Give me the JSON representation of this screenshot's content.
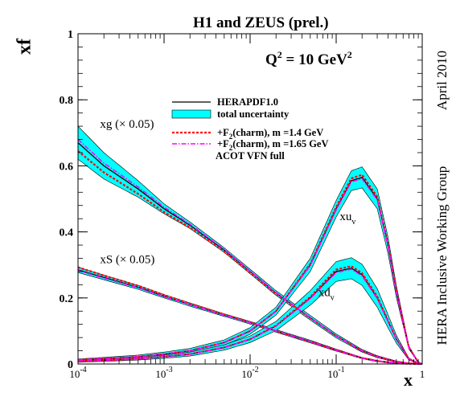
{
  "chart_data": {
    "type": "line",
    "title": "H1 and ZEUS (prel.)",
    "xlabel": "x",
    "ylabel": "xf",
    "x_scale": "log",
    "xlim": [
      0.0001,
      1
    ],
    "ylim": [
      0,
      1
    ],
    "x_ticks": [
      {
        "value": 0.0001,
        "base": "10",
        "exp": "-4"
      },
      {
        "value": 0.001,
        "base": "10",
        "exp": "-3"
      },
      {
        "value": 0.01,
        "base": "10",
        "exp": "-2"
      },
      {
        "value": 0.1,
        "base": "10",
        "exp": "-1"
      },
      {
        "value": 1,
        "base": "1",
        "exp": ""
      }
    ],
    "y_ticks": [
      {
        "value": 0,
        "label": "0"
      },
      {
        "value": 0.2,
        "label": "0.2"
      },
      {
        "value": 0.4,
        "label": "0.4"
      },
      {
        "value": 0.6,
        "label": "0.6"
      },
      {
        "value": 0.8,
        "label": "0.8"
      },
      {
        "value": 1,
        "label": "1"
      }
    ],
    "annotation_q2": {
      "prefix": "Q",
      "sup": "2",
      "text": " = 10 GeV",
      "sup2": "2"
    },
    "side_labels": {
      "date": "April 2010",
      "group": "HERA Inclusive Working Group"
    },
    "curve_labels": [
      {
        "text": "xg (× 0.05)",
        "sub": "",
        "x": 0.00018,
        "y": 0.715
      },
      {
        "text": "xS (× 0.05)",
        "sub": "",
        "x": 0.00018,
        "y": 0.305
      },
      {
        "text": "xu",
        "sub": "v",
        "x": 0.11,
        "y": 0.435
      },
      {
        "text": "xd",
        "sub": "v",
        "x": 0.062,
        "y": 0.205
      }
    ],
    "legend": {
      "placement": "top-right",
      "entries": [
        {
          "text": "HERAPDF1.0",
          "sub": "",
          "text2": "",
          "style": "line",
          "color": "#000000"
        },
        {
          "text": "total uncertainty",
          "sub": "",
          "text2": "",
          "style": "band",
          "color": "#00ffff"
        },
        {
          "text": "+F",
          "sub": "2",
          "text2": "(charm), m =1.4 GeV",
          "style": "dashed",
          "color": "#ff0000"
        },
        {
          "text": "+F",
          "sub": "2",
          "text2": "(charm), m =1.65 GeV",
          "style": "dashdot",
          "color": "#ff00ff"
        },
        {
          "text": "ACOT VFN full",
          "sub": "",
          "text2": "",
          "style": "none",
          "color": "#000000"
        }
      ]
    },
    "colors": {
      "band": "#00ffff",
      "central": "#000000",
      "charm14": "#ff0000",
      "charm165": "#ff00ff"
    },
    "series": [
      {
        "name": "xg (× 0.05)",
        "x": [
          0.0001,
          0.0002,
          0.0005,
          0.001,
          0.002,
          0.005,
          0.01,
          0.02,
          0.05,
          0.1,
          0.2,
          0.3,
          0.5,
          0.7,
          1.0
        ],
        "y": [
          0.67,
          0.6,
          0.53,
          0.47,
          0.42,
          0.345,
          0.28,
          0.215,
          0.14,
          0.085,
          0.04,
          0.022,
          0.007,
          0.002,
          0.0
        ],
        "band": [
          0.05,
          0.04,
          0.025,
          0.015,
          0.01,
          0.007,
          0.007,
          0.007,
          0.007,
          0.006,
          0.004,
          0.003,
          0.002,
          0.001,
          0.0
        ],
        "charm14_shift": [
          -0.025,
          -0.02,
          -0.015,
          -0.01,
          -0.007,
          -0.005,
          -0.003,
          -0.002,
          -0.001,
          0,
          0,
          0,
          0,
          0,
          0
        ],
        "charm165_shift": [
          0.01,
          0.008,
          0.006,
          0.005,
          0.003,
          0.002,
          0.001,
          0.001,
          0,
          0,
          0,
          0,
          0,
          0,
          0
        ]
      },
      {
        "name": "xS (× 0.05)",
        "x": [
          0.0001,
          0.0002,
          0.0005,
          0.001,
          0.002,
          0.005,
          0.01,
          0.02,
          0.05,
          0.1,
          0.2,
          0.3,
          0.5,
          0.7,
          1.0
        ],
        "y": [
          0.285,
          0.262,
          0.232,
          0.205,
          0.18,
          0.148,
          0.125,
          0.1,
          0.068,
          0.042,
          0.018,
          0.009,
          0.002,
          0.0005,
          0.0
        ],
        "band": [
          0.008,
          0.007,
          0.006,
          0.005,
          0.005,
          0.004,
          0.004,
          0.004,
          0.004,
          0.003,
          0.002,
          0.002,
          0.001,
          0.0005,
          0.0
        ],
        "charm14_shift": [
          0.008,
          0.006,
          0.005,
          0.004,
          0.003,
          0.002,
          0.001,
          0,
          0,
          0,
          0,
          0,
          0,
          0,
          0
        ],
        "charm165_shift": [
          -0.002,
          -0.002,
          -0.001,
          -0.001,
          0,
          0,
          0,
          0,
          0,
          0,
          0,
          0,
          0,
          0,
          0
        ]
      },
      {
        "name": "xu_v",
        "x": [
          0.0001,
          0.0002,
          0.0005,
          0.001,
          0.002,
          0.005,
          0.01,
          0.02,
          0.05,
          0.1,
          0.15,
          0.2,
          0.3,
          0.4,
          0.5,
          0.7,
          0.9,
          1.0
        ],
        "y": [
          0.012,
          0.016,
          0.022,
          0.03,
          0.04,
          0.065,
          0.1,
          0.16,
          0.3,
          0.47,
          0.555,
          0.565,
          0.5,
          0.36,
          0.22,
          0.05,
          0.005,
          0.0
        ],
        "band": [
          0.003,
          0.004,
          0.005,
          0.006,
          0.007,
          0.008,
          0.01,
          0.012,
          0.02,
          0.025,
          0.03,
          0.032,
          0.03,
          0.025,
          0.018,
          0.005,
          0.001,
          0.0
        ],
        "charm14_shift": [
          0,
          0,
          0,
          0,
          0,
          0,
          0,
          0,
          0.003,
          0.005,
          0.007,
          0.008,
          0.006,
          0.004,
          0.002,
          0,
          0,
          0
        ],
        "charm165_shift": [
          0,
          0,
          0,
          0,
          0,
          0,
          0,
          0,
          -0.002,
          -0.003,
          -0.003,
          -0.004,
          -0.003,
          -0.002,
          -0.001,
          0,
          0,
          0
        ]
      },
      {
        "name": "xd_v",
        "x": [
          0.0001,
          0.0002,
          0.0005,
          0.001,
          0.002,
          0.005,
          0.01,
          0.02,
          0.05,
          0.1,
          0.15,
          0.2,
          0.3,
          0.4,
          0.5,
          0.7,
          0.9,
          1.0
        ],
        "y": [
          0.008,
          0.011,
          0.016,
          0.022,
          0.03,
          0.05,
          0.075,
          0.115,
          0.2,
          0.28,
          0.29,
          0.27,
          0.2,
          0.13,
          0.075,
          0.015,
          0.002,
          0.0
        ],
        "band": [
          0.003,
          0.003,
          0.004,
          0.005,
          0.006,
          0.008,
          0.01,
          0.014,
          0.022,
          0.03,
          0.032,
          0.032,
          0.028,
          0.02,
          0.012,
          0.003,
          0.0005,
          0.0
        ],
        "charm14_shift": [
          0,
          0,
          0,
          0,
          0,
          0,
          0,
          0.001,
          0.003,
          0.006,
          0.006,
          0.005,
          0.004,
          0.002,
          0.001,
          0,
          0,
          0
        ],
        "charm165_shift": [
          0,
          0,
          0,
          0,
          0,
          0,
          0,
          0,
          -0.002,
          -0.003,
          -0.003,
          -0.003,
          -0.002,
          -0.001,
          0,
          0,
          0,
          0
        ]
      }
    ]
  }
}
